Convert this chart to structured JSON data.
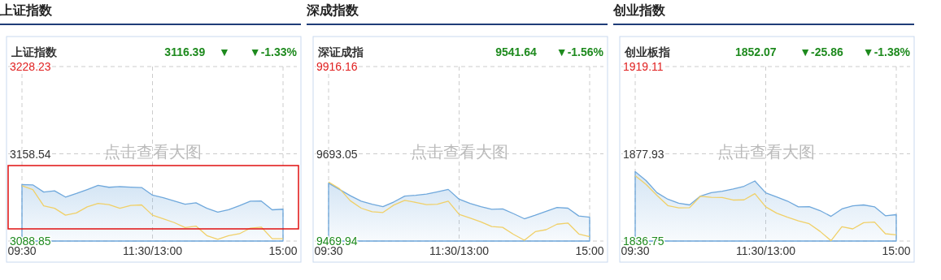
{
  "chart_data": [
    {
      "type": "line",
      "title": "上证指数",
      "subtitle": "上证指数",
      "annotations": [
        "3116.39",
        "▼",
        "▼-1.33%",
        "点击查看大图"
      ],
      "categories": [
        "09:30",
        null,
        null,
        null,
        null,
        null,
        null,
        null,
        null,
        null,
        null,
        null,
        "11:30/13:00",
        null,
        null,
        null,
        null,
        null,
        null,
        null,
        null,
        null,
        null,
        null,
        "15:00"
      ],
      "ylim": [
        3088.85,
        3228.23
      ],
      "yticks": [
        3088.85,
        3158.54,
        3228.23
      ],
      "grid": true,
      "series": [
        {
          "type": "area",
          "color": "#6fa8dc",
          "values": [
            3134.0,
            3133.7,
            3128.0,
            3129.0,
            3124.0,
            3126.8,
            3130.0,
            3133.3,
            3131.8,
            3132.3,
            3131.9,
            3131.6,
            3125.5,
            3123.4,
            3120.8,
            3118.3,
            3119.4,
            3115.0,
            3111.9,
            3113.9,
            3117.1,
            3120.7,
            3120.8,
            3113.8,
            3114.3
          ]
        },
        {
          "type": "line",
          "color": "#f0d068",
          "values": [
            3133.0,
            3130.0,
            3117.0,
            3115.0,
            3109.5,
            3111.3,
            3116.2,
            3118.9,
            3117.9,
            3115.0,
            3117.3,
            3117.7,
            3109.5,
            3106.6,
            3103.6,
            3099.6,
            3100.8,
            3093.2,
            3090.3,
            3093.1,
            3094.7,
            3099.2,
            3100.0,
            3090.7,
            3090.7
          ]
        }
      ]
    },
    {
      "type": "line",
      "title": "深成指数",
      "subtitle": "深证成指",
      "annotations": [
        "9541.64",
        "▼-1.56%",
        "点击查看大图"
      ],
      "categories": [
        "09:30",
        null,
        null,
        null,
        null,
        null,
        null,
        null,
        null,
        null,
        null,
        null,
        "11:30/13:00",
        null,
        null,
        null,
        null,
        null,
        null,
        null,
        null,
        null,
        null,
        null,
        "15:00"
      ],
      "ylim": [
        9469.94,
        9916.16
      ],
      "yticks": [
        9469.94,
        9693.05,
        9916.16
      ],
      "grid": true,
      "series": [
        {
          "type": "area",
          "color": "#6fa8dc",
          "values": [
            9618,
            9602,
            9586,
            9572,
            9564,
            9558,
            9570,
            9585,
            9587,
            9590,
            9596,
            9602,
            9577,
            9566,
            9558,
            9551,
            9552,
            9540,
            9527,
            9536,
            9546,
            9556,
            9554,
            9534,
            9531
          ]
        },
        {
          "type": "line",
          "color": "#f0d068",
          "values": [
            9621,
            9604,
            9573,
            9554,
            9545,
            9543,
            9562,
            9574,
            9569,
            9563,
            9564,
            9572,
            9538,
            9529,
            9519,
            9507,
            9505,
            9487,
            9472,
            9494,
            9499,
            9513,
            9516,
            9488,
            9481
          ]
        }
      ]
    },
    {
      "type": "line",
      "title": "创业指数",
      "subtitle": "创业板指",
      "annotations": [
        "1852.07",
        "▼-25.86",
        "▼-1.38%",
        "点击查看大图"
      ],
      "categories": [
        "09:30",
        null,
        null,
        null,
        null,
        null,
        null,
        null,
        null,
        null,
        null,
        null,
        "11:30/13:00",
        null,
        null,
        null,
        null,
        null,
        null,
        null,
        null,
        null,
        null,
        null,
        "15:00"
      ],
      "ylim": [
        1836.75,
        1919.11
      ],
      "yticks": [
        1836.75,
        1877.93,
        1919.11
      ],
      "grid": true,
      "series": [
        {
          "type": "area",
          "color": "#6fa8dc",
          "values": [
            1869.5,
            1865.3,
            1859.6,
            1856.5,
            1854.6,
            1853.8,
            1858.0,
            1859.6,
            1860.3,
            1861.3,
            1862.6,
            1865.1,
            1859.5,
            1857.6,
            1855.6,
            1852.9,
            1853.0,
            1851.1,
            1848.4,
            1851.9,
            1853.4,
            1853.8,
            1852.9,
            1848.7,
            1849.2
          ]
        },
        {
          "type": "line",
          "color": "#f0d068",
          "values": [
            1867.6,
            1863.5,
            1858.3,
            1853.5,
            1852.4,
            1852.5,
            1857.9,
            1857.4,
            1857.3,
            1856.1,
            1856.2,
            1859.1,
            1852.9,
            1849.9,
            1848.0,
            1846.3,
            1844.9,
            1841.3,
            1836.9,
            1843.5,
            1842.5,
            1845.4,
            1845.7,
            1840.2,
            1839.7
          ]
        }
      ]
    }
  ]
}
